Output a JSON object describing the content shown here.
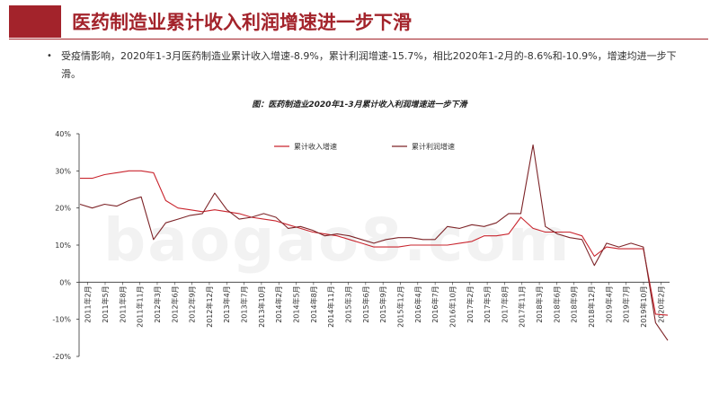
{
  "header": {
    "title": "医药制造业累计收入利润增速进一步下滑"
  },
  "body": {
    "bullet": "•",
    "text": "受疫情影响，2020年1-3月医药制造业累计收入增速-8.9%，累计利润增速-15.7%，相比2020年1-2月的-8.6%和-10.9%，增速均进一步下滑。"
  },
  "watermark": "baogao8.com",
  "chart_data": {
    "type": "line",
    "title": "图：医药制造业2020年1-3月累计收入利润增速进一步下滑",
    "ylim": [
      -20,
      40
    ],
    "yticks": [
      "40%",
      "30%",
      "20%",
      "10%",
      "0%",
      "-10%",
      "-20%"
    ],
    "x_labels": [
      "2011年2月",
      "2011年5月",
      "2011年8月",
      "2011年11月",
      "2012年3月",
      "2012年6月",
      "2012年9月",
      "2012年12月",
      "2013年4月",
      "2013年7月",
      "2013年10月",
      "2014年2月",
      "2014年5月",
      "2014年8月",
      "2014年11月",
      "2015年3月",
      "2015年6月",
      "2015年9月",
      "2015年12月",
      "2016年4月",
      "2016年7月",
      "2016年10月",
      "2017年2月",
      "2017年5月",
      "2017年8月",
      "2017年11月",
      "2018年3月",
      "2018年6月",
      "2018年9月",
      "2018年12月",
      "2019年4月",
      "2019年7月",
      "2019年10月",
      "2020年2月"
    ],
    "series": [
      {
        "name": "累计收入增速",
        "color": "#c9252e",
        "values": [
          28,
          28,
          29,
          29.5,
          30,
          30,
          29.5,
          22,
          20,
          19.5,
          19,
          19.5,
          19,
          18.5,
          17.5,
          17,
          16.5,
          15.5,
          14.5,
          13.5,
          13,
          12.5,
          11.5,
          10.5,
          9.5,
          9.5,
          9.5,
          10,
          10,
          10,
          10,
          10.5,
          11,
          12.5,
          12.5,
          13,
          17.5,
          14.5,
          13.5,
          13.5,
          13.5,
          12.5,
          7,
          9.5,
          9,
          9,
          9,
          -8.6,
          -8.9
        ]
      },
      {
        "name": "累计利润增速",
        "color": "#7d2428",
        "values": [
          21,
          20,
          21,
          20.5,
          22,
          23,
          11.5,
          16,
          17,
          18,
          18.5,
          24,
          19.5,
          17,
          17.5,
          18.5,
          17.5,
          14.5,
          15,
          14,
          12.5,
          13,
          12.5,
          11.5,
          10.5,
          11.5,
          12,
          12,
          11.5,
          11.5,
          15,
          14.5,
          15.5,
          15,
          16,
          18.5,
          18.5,
          37,
          15,
          13,
          12,
          11.5,
          4.5,
          10.5,
          9.5,
          10.5,
          9.5,
          -10.9,
          -15.7
        ]
      }
    ]
  }
}
